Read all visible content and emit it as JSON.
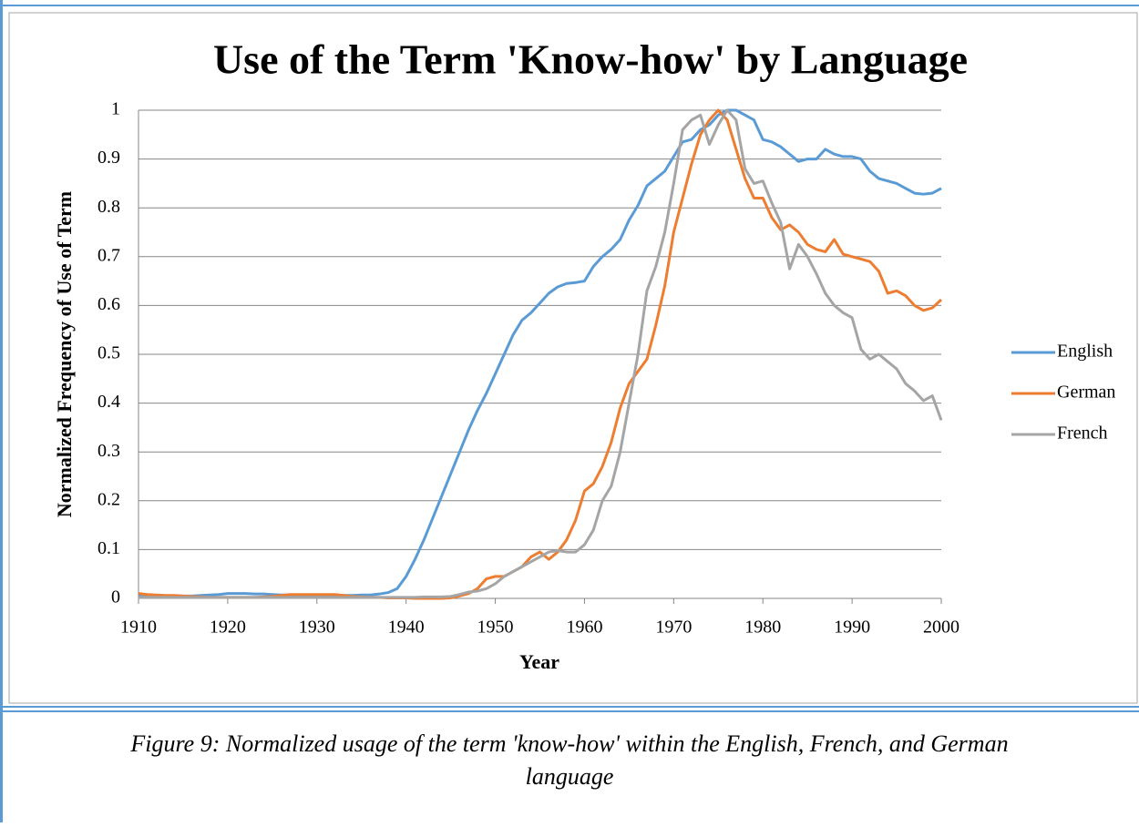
{
  "chart_data": {
    "type": "line",
    "title": "Use of the Term 'Know-how' by Language",
    "xlabel": "Year",
    "ylabel": "Normalized Frequency of Use of Term",
    "x": [
      1910,
      1911,
      1912,
      1913,
      1914,
      1915,
      1916,
      1917,
      1918,
      1919,
      1920,
      1921,
      1922,
      1923,
      1924,
      1925,
      1926,
      1927,
      1928,
      1929,
      1930,
      1931,
      1932,
      1933,
      1934,
      1935,
      1936,
      1937,
      1938,
      1939,
      1940,
      1941,
      1942,
      1943,
      1944,
      1945,
      1946,
      1947,
      1948,
      1949,
      1950,
      1951,
      1952,
      1953,
      1954,
      1955,
      1956,
      1957,
      1958,
      1959,
      1960,
      1961,
      1962,
      1963,
      1964,
      1965,
      1966,
      1967,
      1968,
      1969,
      1970,
      1971,
      1972,
      1973,
      1974,
      1975,
      1976,
      1977,
      1978,
      1979,
      1980,
      1981,
      1982,
      1983,
      1984,
      1985,
      1986,
      1987,
      1988,
      1989,
      1990,
      1991,
      1992,
      1993,
      1994,
      1995,
      1996,
      1997,
      1998,
      1999,
      2000
    ],
    "series": [
      {
        "name": "English",
        "color": "#5b9bd5",
        "values": [
          0.005,
          0.005,
          0.005,
          0.005,
          0.005,
          0.005,
          0.005,
          0.006,
          0.007,
          0.008,
          0.01,
          0.01,
          0.01,
          0.009,
          0.009,
          0.008,
          0.007,
          0.007,
          0.006,
          0.006,
          0.006,
          0.006,
          0.006,
          0.006,
          0.006,
          0.007,
          0.007,
          0.009,
          0.012,
          0.02,
          0.045,
          0.08,
          0.12,
          0.165,
          0.21,
          0.255,
          0.3,
          0.345,
          0.385,
          0.42,
          0.46,
          0.5,
          0.54,
          0.57,
          0.585,
          0.605,
          0.625,
          0.638,
          0.645,
          0.647,
          0.65,
          0.68,
          0.7,
          0.715,
          0.735,
          0.775,
          0.805,
          0.845,
          0.86,
          0.875,
          0.905,
          0.935,
          0.94,
          0.96,
          0.97,
          0.99,
          1.0,
          1.0,
          0.99,
          0.98,
          0.94,
          0.935,
          0.925,
          0.91,
          0.895,
          0.9,
          0.9,
          0.92,
          0.91,
          0.905,
          0.905,
          0.9,
          0.875,
          0.86,
          0.855,
          0.85,
          0.84,
          0.83,
          0.828,
          0.83,
          0.84
        ]
      },
      {
        "name": "German",
        "color": "#ed7d31",
        "values": [
          0.01,
          0.008,
          0.007,
          0.006,
          0.006,
          0.005,
          0.004,
          0.003,
          0.002,
          0.002,
          0.002,
          0.002,
          0.002,
          0.002,
          0.003,
          0.004,
          0.006,
          0.008,
          0.008,
          0.008,
          0.008,
          0.008,
          0.008,
          0.006,
          0.004,
          0.003,
          0.002,
          0.002,
          0.001,
          0.001,
          0.001,
          0,
          0,
          0,
          0,
          0.001,
          0.005,
          0.01,
          0.02,
          0.04,
          0.045,
          0.045,
          0.055,
          0.065,
          0.085,
          0.095,
          0.08,
          0.095,
          0.12,
          0.16,
          0.22,
          0.235,
          0.27,
          0.32,
          0.39,
          0.44,
          0.465,
          0.49,
          0.56,
          0.64,
          0.75,
          0.82,
          0.89,
          0.95,
          0.98,
          1.0,
          0.98,
          0.92,
          0.86,
          0.82,
          0.82,
          0.78,
          0.755,
          0.765,
          0.75,
          0.725,
          0.715,
          0.71,
          0.735,
          0.705,
          0.7,
          0.695,
          0.69,
          0.67,
          0.625,
          0.63,
          0.62,
          0.6,
          0.59,
          0.595,
          0.612
        ]
      },
      {
        "name": "French",
        "color": "#a5a5a5",
        "values": [
          0.002,
          0.002,
          0.002,
          0.002,
          0.002,
          0.002,
          0.002,
          0.002,
          0.002,
          0.002,
          0.002,
          0.002,
          0.002,
          0.002,
          0.002,
          0.002,
          0.002,
          0.002,
          0.002,
          0.002,
          0.002,
          0.002,
          0.002,
          0.002,
          0.002,
          0.002,
          0.002,
          0.002,
          0.002,
          0.002,
          0.002,
          0.002,
          0.003,
          0.003,
          0.003,
          0.004,
          0.008,
          0.013,
          0.015,
          0.02,
          0.03,
          0.045,
          0.055,
          0.065,
          0.075,
          0.085,
          0.095,
          0.098,
          0.095,
          0.095,
          0.11,
          0.14,
          0.2,
          0.23,
          0.3,
          0.4,
          0.5,
          0.63,
          0.68,
          0.75,
          0.85,
          0.96,
          0.98,
          0.99,
          0.93,
          0.97,
          1.0,
          0.98,
          0.88,
          0.85,
          0.855,
          0.81,
          0.77,
          0.675,
          0.725,
          0.7,
          0.665,
          0.625,
          0.6,
          0.585,
          0.575,
          0.51,
          0.49,
          0.5,
          0.485,
          0.47,
          0.44,
          0.425,
          0.405,
          0.415,
          0.365
        ]
      }
    ],
    "xlim": [
      1910,
      2000
    ],
    "xticks": [
      1910,
      1920,
      1930,
      1940,
      1950,
      1960,
      1970,
      1980,
      1990,
      2000
    ],
    "ylim": [
      0,
      1
    ],
    "yticks": [
      0,
      0.1,
      0.2,
      0.3,
      0.4,
      0.5,
      0.6,
      0.7,
      0.8,
      0.9,
      1
    ],
    "grid": true,
    "legend": "right"
  },
  "caption": [
    "Figure 9: Normalized usage of the term 'know-how' within the English, French, and German",
    "language"
  ]
}
